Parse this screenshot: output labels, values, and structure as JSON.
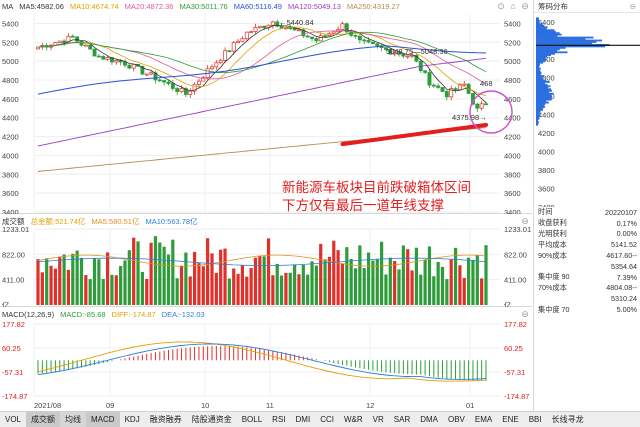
{
  "price_chart": {
    "legend": [
      {
        "label": "MA",
        "color": "#333333"
      },
      {
        "label": "MA5:4582.06",
        "color": "#333333"
      },
      {
        "label": "MA10:4674.74",
        "color": "#e0a000"
      },
      {
        "label": "MA20:4872.36",
        "color": "#e05a9a"
      },
      {
        "label": "MA30:5011.76",
        "color": "#2e9c3a"
      },
      {
        "label": "MA60:5116.49",
        "color": "#2b50d8"
      },
      {
        "label": "MA120:5049.13",
        "color": "#9b3fc8"
      },
      {
        "label": "MA250:4319.27",
        "color": "#b98a52"
      }
    ],
    "y_ticks": [
      "5400",
      "5200",
      "5000",
      "4800",
      "4600",
      "4400",
      "4200",
      "4000",
      "3800",
      "3600",
      "3400"
    ],
    "annotations": [
      "5440.84",
      "5048.75",
      "5048.36",
      "468",
      "4375.98"
    ],
    "overlay_text": [
      "新能源车板块目前跌破箱体区间",
      "下方仅有最后一道年线支撑"
    ],
    "annotation_color": "#e02020",
    "highlight_color": "#cc55cc"
  },
  "volume_chart": {
    "legend": [
      {
        "label": "成交额",
        "color": "#333333"
      },
      {
        "label": "总金额:521.74亿",
        "color": "#e0a000"
      },
      {
        "label": "MA5:580.51亿",
        "color": "#e09020"
      },
      {
        "label": "MA10:563.78亿",
        "color": "#2b80d8"
      }
    ],
    "y_ticks": [
      "1233.01",
      "822.00",
      "411.00",
      "亿"
    ]
  },
  "macd_chart": {
    "legend": [
      {
        "label": "MACD(12,26,9)",
        "color": "#333333"
      },
      {
        "label": "MACD:-85.68",
        "color": "#2e9c3a"
      },
      {
        "label": "DIFF:-174.87",
        "color": "#e0a000"
      },
      {
        "label": "DEA:-132.03",
        "color": "#2b80d8"
      }
    ],
    "y_ticks": [
      "177.82",
      "60.25",
      "-57.31",
      "-174.87"
    ]
  },
  "x_axis": [
    "2021/08",
    "09",
    "10",
    "11",
    "12",
    "01"
  ],
  "side_panel": {
    "title": "筹码分布",
    "y_ticks": [
      "5400",
      "5200",
      "5000",
      "4800",
      "4600",
      "4400",
      "4200",
      "4000",
      "3800",
      "3600",
      "3400"
    ],
    "stats": [
      {
        "label": "时间",
        "value": "20220107"
      },
      {
        "label": "收盘获利",
        "value": "0.17%"
      },
      {
        "label": "光明获利",
        "value": "0.00%"
      },
      {
        "label": "平均成本",
        "value": "5141.52"
      },
      {
        "label": "90%成本",
        "value": "4617.60--"
      },
      {
        "label": "",
        "value": "5354.64"
      },
      {
        "label": "集中度 90",
        "value": "7.39%"
      },
      {
        "label": "70%成本",
        "value": "4804.08--"
      },
      {
        "label": "",
        "value": "5310.24"
      },
      {
        "label": "集中度 70",
        "value": "5.00%"
      }
    ]
  },
  "bottom_tabs": [
    "VOL",
    "成交额",
    "均线",
    "MACD",
    "KDJ",
    "融资融券",
    "陆股通资金",
    "BOLL",
    "RSI",
    "DMI",
    "CCI",
    "W&R",
    "VR",
    "SAR",
    "DMA",
    "OBV",
    "EMA",
    "ENE",
    "BBI",
    "长线寻龙"
  ],
  "selected_tabs": [
    "成交额",
    "MACD"
  ],
  "dim_tabs": [
    "均线"
  ]
}
